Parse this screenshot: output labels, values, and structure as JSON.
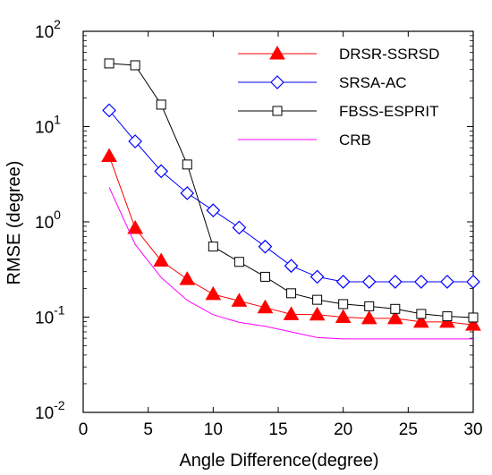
{
  "chart_data": {
    "type": "line",
    "xlabel": "Angle Difference(degree)",
    "ylabel": "RMSE (degree)",
    "xlim": [
      0,
      30
    ],
    "ylim_log10": [
      -2,
      2
    ],
    "y_scale": "log",
    "grid": false,
    "legend_position": "top-right",
    "x_ticks": [
      "0",
      "5",
      "10",
      "15",
      "20",
      "25",
      "30"
    ],
    "y_ticks": [
      {
        "base": "10",
        "exp": "2"
      },
      {
        "base": "10",
        "exp": "1"
      },
      {
        "base": "10",
        "exp": "0"
      },
      {
        "base": "10",
        "exp": "-1"
      },
      {
        "base": "10",
        "exp": "-2"
      }
    ],
    "series": [
      {
        "name": "DRSR-SSRSD",
        "color": "#ff0000",
        "marker": "filled-triangle",
        "x": [
          2,
          4,
          6,
          8,
          10,
          12,
          14,
          16,
          18,
          20,
          22,
          24,
          26,
          28,
          30
        ],
        "y": [
          4.9,
          0.86,
          0.39,
          0.25,
          0.174,
          0.148,
          0.126,
          0.107,
          0.106,
          0.1,
          0.097,
          0.097,
          0.089,
          0.089,
          0.083
        ]
      },
      {
        "name": "SRSA-AC",
        "color": "#0000ff",
        "marker": "open-diamond",
        "x": [
          2,
          4,
          6,
          8,
          10,
          12,
          14,
          16,
          18,
          20,
          22,
          24,
          26,
          28,
          30
        ],
        "y": [
          14.8,
          7.0,
          3.4,
          2.0,
          1.32,
          0.87,
          0.55,
          0.345,
          0.265,
          0.235,
          0.235,
          0.235,
          0.235,
          0.235,
          0.235
        ]
      },
      {
        "name": "FBSS-ESPRIT",
        "color": "#000000",
        "marker": "open-square",
        "x": [
          2,
          4,
          6,
          8,
          10,
          12,
          14,
          16,
          18,
          20,
          22,
          24,
          26,
          28,
          30
        ],
        "y": [
          46,
          44,
          17,
          4.0,
          0.55,
          0.38,
          0.265,
          0.178,
          0.152,
          0.137,
          0.13,
          0.122,
          0.108,
          0.102,
          0.099
        ]
      },
      {
        "name": "CRB",
        "color": "#ff00ff",
        "marker": "none",
        "x": [
          2,
          4,
          6,
          8,
          10,
          12,
          14,
          16,
          18,
          20,
          22,
          24,
          26,
          28,
          30
        ],
        "y": [
          2.3,
          0.58,
          0.26,
          0.15,
          0.106,
          0.088,
          0.08,
          0.07,
          0.061,
          0.059,
          0.059,
          0.059,
          0.059,
          0.059,
          0.059
        ]
      }
    ]
  }
}
